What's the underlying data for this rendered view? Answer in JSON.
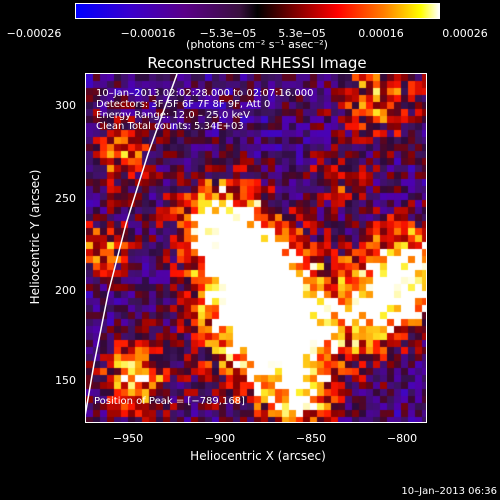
{
  "colorbar": {
    "ticks": [
      "−0.00026",
      "−0.00016",
      "−5.3e−05",
      "5.3e−05",
      "0.00016",
      "0.00026"
    ],
    "units": "(photons cm⁻² s⁻¹ asec⁻²)"
  },
  "plot": {
    "title": "Reconstructed RHESSI Image",
    "info_lines": [
      "10–Jan–2013 02:02:28.000 to 02:07:16.000",
      "Detectors: 3F 5F 6F 7F 8F 9F, Att 0",
      "Energy Range: 12.0 – 25.0 keV",
      "Clean      Total counts: 5.34E+03"
    ],
    "peak": "Position of Peak = [−789,168]",
    "x_label": "Heliocentric X (arcsec)",
    "y_label": "Heliocentric Y (arcsec)",
    "x_ticks": [
      "−950",
      "−900",
      "−850",
      "−800"
    ],
    "y_ticks": [
      "300",
      "250",
      "200",
      "150"
    ]
  },
  "timestamp": "10–Jan–2013 06:36",
  "colors": {
    "background": "#000000",
    "limb": "#ffffff"
  }
}
